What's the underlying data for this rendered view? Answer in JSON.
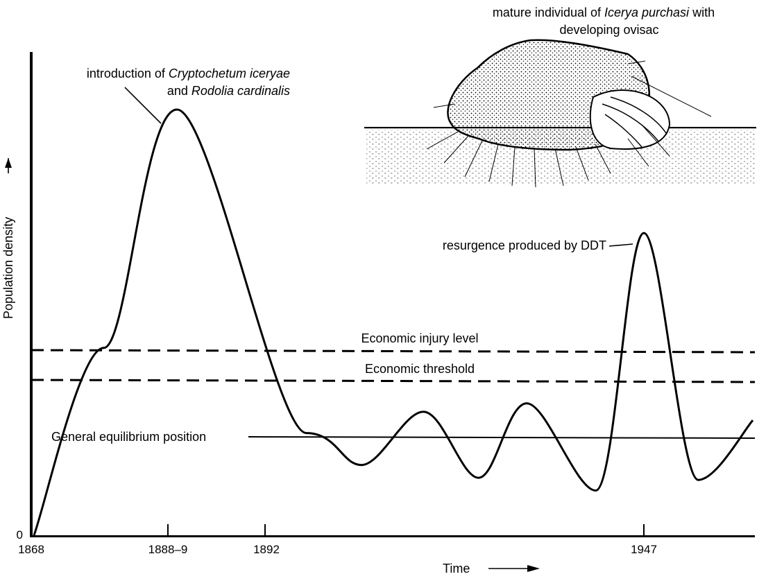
{
  "chart_data": {
    "type": "line",
    "ylabel": "Population density",
    "xlabel": "Time",
    "y_origin_label": "0",
    "x_ticks": [
      "1868",
      "1888–9",
      "1892",
      "1947"
    ],
    "reference_lines": [
      {
        "label": "Economic injury level",
        "style": "dashed"
      },
      {
        "label": "Economic threshold",
        "style": "dashed"
      },
      {
        "label": "General equilibrium position",
        "style": "solid"
      }
    ],
    "annotations": {
      "introduction": {
        "part1": "introduction of ",
        "species1": "Cryptochetum iceryae",
        "part2": "and ",
        "species2": "Rodolia cardinalis"
      },
      "resurgence": "resurgence produced by DDT"
    },
    "illustration_caption": {
      "part1": "mature individual of ",
      "species": "Icerya purchasi",
      "part2": "with",
      "line2": "developing ovisac"
    },
    "series": [
      {
        "x": [
          1868,
          1878,
          1888.5,
          1898,
          1906,
          1915,
          1923,
          1930,
          1940,
          1947,
          1956,
          1965
        ],
        "values": [
          0,
          4.4,
          10,
          2.4,
          1.65,
          2.9,
          1.35,
          3.1,
          1.05,
          7.1,
          1.3,
          2.7
        ]
      }
    ]
  },
  "colors": {
    "line": "#000000",
    "background": "#ffffff"
  }
}
